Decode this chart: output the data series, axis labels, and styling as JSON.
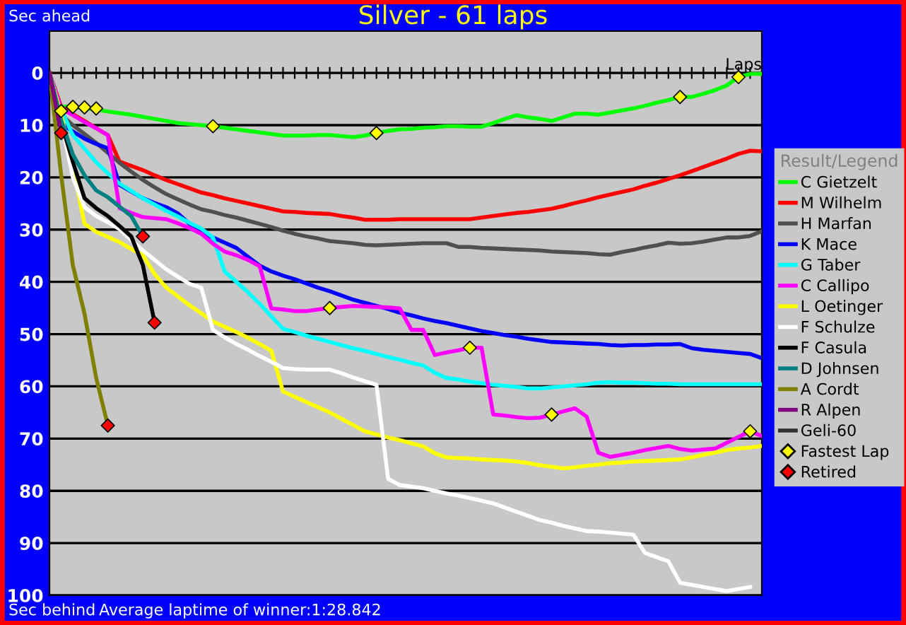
{
  "chart_data": {
    "type": "line",
    "title": "Silver - 61 laps",
    "xlabel": "Laps",
    "legend_title": "Result/Legend",
    "annotations": [
      "Sec ahead",
      "Sec behind",
      "Average laptime of winner:1:28.842"
    ],
    "categories": [
      null,
      null,
      null,
      null,
      null,
      null,
      null,
      null,
      null,
      null,
      null,
      null,
      null,
      null,
      null,
      null,
      null,
      null,
      null,
      null,
      null,
      null,
      null,
      null,
      null,
      null,
      null,
      null,
      null,
      null,
      null,
      null,
      null,
      null,
      null,
      null,
      null,
      null,
      null,
      null,
      null,
      null,
      null,
      null,
      null,
      null,
      null,
      null,
      null,
      null,
      null,
      null,
      null,
      null,
      null,
      null,
      null,
      null,
      null,
      null,
      null,
      null
    ],
    "ylim": [
      100,
      -8
    ],
    "yticks": [
      0,
      10,
      20,
      30,
      40,
      50,
      60,
      70,
      80,
      90,
      100
    ],
    "tick_labels": "y",
    "grid": "y",
    "legend": "right",
    "line_style": "solid",
    "series": [
      {
        "name": "C Gietzelt",
        "color": "#00ff00",
        "values": [
          0,
          6.5,
          6.5,
          6.8,
          7,
          7.4,
          7.7,
          8,
          8.4,
          8.8,
          9.2,
          9.6,
          9.8,
          10,
          10.2,
          10.5,
          10.8,
          11.1,
          11.4,
          11.7,
          12,
          12,
          12,
          11.9,
          11.9,
          12.1,
          12.3,
          12,
          11.5,
          11.1,
          10.8,
          10.7,
          10.5,
          10.4,
          10.2,
          10.2,
          10.3,
          10.3,
          9.6,
          8.8,
          8.1,
          8.5,
          8.8,
          9.2,
          8.5,
          7.8,
          7.8,
          8,
          7.6,
          7.2,
          6.8,
          6.3,
          5.7,
          5.2,
          4.6,
          4.6,
          4,
          3.3,
          2.4,
          0.8,
          0.2,
          0.2
        ]
      },
      {
        "name": "M Wilhelm",
        "color": "#ff0000",
        "values": [
          0,
          6.5,
          7.9,
          9.2,
          10.6,
          11.9,
          17,
          17.8,
          18.6,
          19.6,
          20.5,
          21.3,
          22.1,
          22.9,
          23.4,
          24,
          24.5,
          25,
          25.5,
          26,
          26.5,
          26.6,
          26.8,
          26.9,
          27,
          27.4,
          27.7,
          28.1,
          28.1,
          28.1,
          28,
          28,
          28,
          28,
          28,
          28,
          28,
          27.7,
          27.4,
          27.1,
          26.8,
          26.6,
          26.3,
          26,
          25.5,
          24.9,
          24.4,
          23.8,
          23.3,
          22.8,
          22.3,
          21.6,
          21,
          20.3,
          19.6,
          18.8,
          18,
          17.2,
          16.4,
          15.5,
          14.9,
          15
        ]
      },
      {
        "name": "H Marfan",
        "color": "#505050",
        "values": [
          0,
          8,
          10,
          11.7,
          13.4,
          15.3,
          17.2,
          18.9,
          20.5,
          21.9,
          23.2,
          24.2,
          25.2,
          26.1,
          26.6,
          27.2,
          27.7,
          28.3,
          28.9,
          29.5,
          30.2,
          30.8,
          31.3,
          31.7,
          32.2,
          32.4,
          32.6,
          32.9,
          33,
          32.9,
          32.8,
          32.7,
          32.6,
          32.6,
          32.6,
          33.3,
          33.3,
          33.5,
          33.6,
          33.7,
          33.8,
          33.9,
          34,
          34.2,
          34.3,
          34.4,
          34.5,
          34.7,
          34.8,
          34.3,
          33.9,
          33.4,
          33,
          32.5,
          32.7,
          32.6,
          32.3,
          31.9,
          31.5,
          31.5,
          31.2,
          30.3
        ]
      },
      {
        "name": "K Mace",
        "color": "#0000ff",
        "values": [
          0,
          9.7,
          11.2,
          12.6,
          13.6,
          14.4,
          21.4,
          22.7,
          24,
          24.9,
          25.7,
          26.9,
          28.9,
          30.6,
          31.5,
          32.5,
          33.5,
          35.2,
          36.9,
          38,
          38.8,
          39.5,
          40.3,
          41.1,
          41.8,
          42.6,
          43.4,
          44,
          44.6,
          45.2,
          45.9,
          46.4,
          47,
          47.5,
          47.9,
          48.4,
          48.9,
          49.4,
          49.8,
          50.2,
          50.5,
          50.9,
          51.2,
          51.5,
          51.6,
          51.7,
          51.8,
          51.9,
          52.1,
          52.2,
          52.1,
          52.1,
          52,
          52,
          51.9,
          52.7,
          53,
          53.2,
          53.4,
          53.6,
          53.8,
          54.6
        ]
      },
      {
        "name": "G Taber",
        "color": "#00ffff",
        "values": [
          0,
          7,
          11.9,
          14.5,
          17.1,
          19.2,
          21.2,
          22.6,
          24,
          25.2,
          26.4,
          27.5,
          28.7,
          29.8,
          31.5,
          38,
          40,
          42,
          44.2,
          46.6,
          49,
          49.6,
          50.3,
          50.9,
          51.5,
          52.1,
          52.7,
          53.2,
          53.8,
          54.4,
          54.9,
          55.5,
          56,
          57.4,
          58.4,
          58.7,
          59.1,
          59.4,
          59.7,
          59.9,
          60.1,
          60.4,
          60.4,
          60.2,
          60,
          59.8,
          59.6,
          59.3,
          59.2,
          59.3,
          59.3,
          59.4,
          59.5,
          59.5,
          59.6,
          59.6,
          59.6,
          59.6,
          59.6,
          59.6,
          59.6,
          59.6
        ]
      },
      {
        "name": "C Callipo",
        "color": "#ff00ff",
        "values": [
          0,
          6.8,
          8.1,
          9.4,
          10.6,
          11.9,
          25.9,
          26.8,
          27.6,
          27.8,
          28,
          28.8,
          29.7,
          30.8,
          32.7,
          34.2,
          34.9,
          35.8,
          37,
          45.1,
          45.3,
          45.6,
          45.6,
          45.3,
          45,
          44.8,
          44.6,
          44.7,
          44.8,
          44.9,
          45.1,
          49.2,
          49.2,
          54,
          53.5,
          53.1,
          52.6,
          52.6,
          65.4,
          65.6,
          65.9,
          66.1,
          66,
          65.4,
          64.8,
          64.2,
          65.8,
          72.7,
          73.5,
          73.1,
          72.7,
          72.2,
          71.8,
          71.4,
          72,
          72.3,
          72.1,
          71.9,
          70.8,
          69.7,
          68.6,
          69.5
        ]
      },
      {
        "name": "L Oetinger",
        "color": "#ffff00",
        "values": [
          0,
          8,
          17.8,
          28.9,
          30.4,
          31.4,
          32.4,
          33.7,
          34.9,
          38.5,
          41.1,
          42.8,
          44.5,
          46,
          47.6,
          48.6,
          49.6,
          50.7,
          51.9,
          53.2,
          61,
          62,
          63,
          64,
          65,
          66.2,
          67.4,
          68.6,
          69.2,
          69.8,
          70.3,
          70.9,
          71.5,
          72.8,
          73.6,
          73.7,
          73.8,
          74,
          74.1,
          74.2,
          74.4,
          74.7,
          75.1,
          75.4,
          75.7,
          75.5,
          75.2,
          75,
          74.7,
          74.6,
          74.4,
          74.3,
          74.2,
          74.1,
          74,
          73.6,
          73.1,
          72.7,
          72.2,
          71.9,
          71.7,
          71.4
        ]
      },
      {
        "name": "F Schulze",
        "color": "#ffffff",
        "values": [
          0,
          9,
          20,
          25.7,
          27.4,
          28.6,
          29.9,
          32,
          34,
          35.8,
          37.6,
          39,
          40.4,
          41.1,
          49.2,
          50.6,
          51.9,
          53,
          54.2,
          55.3,
          56.5,
          56.7,
          56.8,
          56.8,
          56.8,
          57.5,
          58.3,
          59,
          59.7,
          77.7,
          78.9,
          79.2,
          79.5,
          80,
          80.5,
          80.9,
          81.4,
          81.9,
          82.4,
          83.2,
          84,
          84.8,
          85.6,
          86.1,
          86.7,
          87.2,
          87.7,
          87.8,
          88,
          88.2,
          88.4,
          91.9,
          92.7,
          93.5,
          97.6,
          98,
          98.4,
          98.8,
          99.2,
          98.8,
          98.4,
          null
        ]
      },
      {
        "name": "F Casula",
        "color": "#000000",
        "values": [
          0,
          9.5,
          17,
          24,
          25.9,
          27.4,
          29.3,
          31.3,
          36.8,
          47.8,
          null,
          null,
          null,
          null,
          null,
          null,
          null,
          null,
          null,
          null,
          null,
          null,
          null,
          null,
          null,
          null,
          null,
          null,
          null,
          null,
          null,
          null,
          null,
          null,
          null,
          null,
          null,
          null,
          null,
          null,
          null,
          null,
          null,
          null,
          null,
          null,
          null,
          null,
          null,
          null,
          null,
          null,
          null,
          null,
          null,
          null,
          null,
          null,
          null,
          null,
          null,
          null
        ]
      },
      {
        "name": "D Johnsen",
        "color": "#008080",
        "values": [
          0,
          9,
          15.6,
          19.6,
          22.5,
          23.8,
          25.6,
          27.4,
          31.3,
          null,
          null,
          null,
          null,
          null,
          null,
          null,
          null,
          null,
          null,
          null,
          null,
          null,
          null,
          null,
          null,
          null,
          null,
          null,
          null,
          null,
          null,
          null,
          null,
          null,
          null,
          null,
          null,
          null,
          null,
          null,
          null,
          null,
          null,
          null,
          null,
          null,
          null,
          null,
          null,
          null,
          null,
          null,
          null,
          null,
          null,
          null,
          null,
          null,
          null,
          null,
          null,
          null
        ]
      },
      {
        "name": "A Cordt",
        "color": "#808000",
        "values": [
          0,
          19.5,
          36.8,
          46.1,
          58.4,
          67.5,
          null,
          null,
          null,
          null,
          null,
          null,
          null,
          null,
          null,
          null,
          null,
          null,
          null,
          null,
          null,
          null,
          null,
          null,
          null,
          null,
          null,
          null,
          null,
          null,
          null,
          null,
          null,
          null,
          null,
          null,
          null,
          null,
          null,
          null,
          null,
          null,
          null,
          null,
          null,
          null,
          null,
          null,
          null,
          null,
          null,
          null,
          null,
          null,
          null,
          null,
          null,
          null,
          null,
          null,
          null,
          null
        ]
      },
      {
        "name": "R Alpen",
        "color": "#800080",
        "values": [
          0,
          11.5,
          null,
          null,
          null,
          null,
          null,
          null,
          null,
          null,
          null,
          null,
          null,
          null,
          null,
          null,
          null,
          null,
          null,
          null,
          null,
          null,
          null,
          null,
          null,
          null,
          null,
          null,
          null,
          null,
          null,
          null,
          null,
          null,
          null,
          null,
          null,
          null,
          null,
          null,
          null,
          null,
          null,
          null,
          null,
          null,
          null,
          null,
          null,
          null,
          null,
          null,
          null,
          null,
          null,
          null,
          null,
          null,
          null,
          null,
          null,
          null
        ]
      },
      {
        "name": "Geli-60",
        "color": "#303030",
        "values": [
          null,
          null,
          null,
          null,
          null,
          null,
          null,
          null,
          null,
          null,
          null,
          null,
          null,
          null,
          null,
          null,
          null,
          null,
          null,
          null,
          null,
          null,
          null,
          null,
          null,
          null,
          null,
          null,
          null,
          null,
          null,
          null,
          null,
          null,
          null,
          null,
          null,
          null,
          null,
          null,
          null,
          null,
          null,
          null,
          null,
          null,
          null,
          null,
          null,
          null,
          null,
          null,
          null,
          null,
          null,
          null,
          null,
          null,
          null,
          null,
          null,
          null
        ]
      },
      {
        "name": "Fastest Lap",
        "type": "scatter",
        "marker": "diamond",
        "color": "#ffff00",
        "values": [
          null,
          7.3,
          6.5,
          6.6,
          6.8,
          null,
          null,
          null,
          null,
          null,
          null,
          null,
          null,
          null,
          10.2,
          null,
          null,
          null,
          null,
          null,
          null,
          null,
          null,
          null,
          45,
          null,
          null,
          null,
          11.5,
          null,
          null,
          null,
          null,
          null,
          null,
          null,
          52.6,
          null,
          null,
          null,
          null,
          null,
          null,
          65.4,
          null,
          null,
          null,
          null,
          null,
          null,
          null,
          null,
          null,
          null,
          4.6,
          null,
          null,
          null,
          null,
          0.8,
          68.6,
          null
        ]
      },
      {
        "name": "Retired",
        "type": "scatter",
        "marker": "diamond",
        "color": "#ff0000",
        "values": [
          null,
          11.5,
          null,
          null,
          null,
          67.5,
          null,
          null,
          31.3,
          47.8,
          null,
          null,
          null,
          null,
          null,
          null,
          null,
          null,
          null,
          null,
          null,
          null,
          null,
          null,
          null,
          null,
          null,
          null,
          null,
          null,
          null,
          null,
          null,
          null,
          null,
          null,
          null,
          null,
          null,
          null,
          null,
          null,
          null,
          null,
          null,
          null,
          null,
          null,
          null,
          null,
          null,
          null,
          null,
          null,
          null,
          null,
          null,
          null,
          null,
          null,
          null,
          null
        ]
      }
    ]
  }
}
